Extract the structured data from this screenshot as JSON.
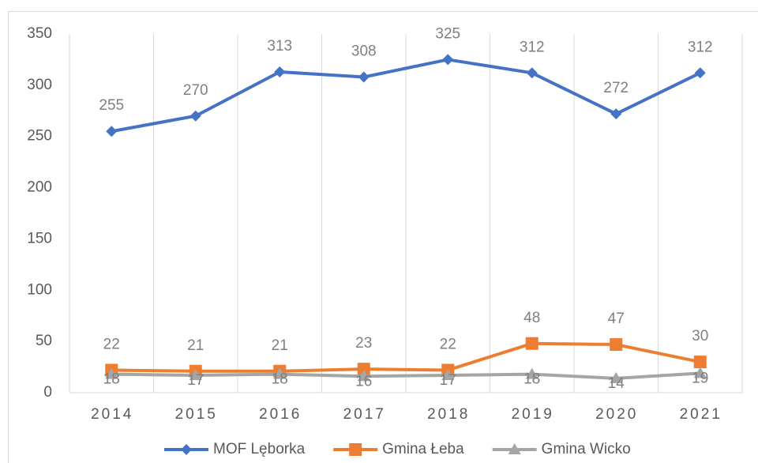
{
  "chart_data": {
    "type": "line",
    "categories": [
      "2014",
      "2015",
      "2016",
      "2017",
      "2018",
      "2019",
      "2020",
      "2021"
    ],
    "series": [
      {
        "name": "MOF Lęborka",
        "color": "#4472c4",
        "marker": "diamond",
        "label_position": "above",
        "values": [
          255,
          270,
          313,
          308,
          325,
          312,
          272,
          312
        ]
      },
      {
        "name": "Gmina Łeba",
        "color": "#ed7d31",
        "marker": "square",
        "label_position": "above",
        "values": [
          22,
          21,
          21,
          23,
          22,
          48,
          47,
          30
        ]
      },
      {
        "name": "Gmina Wicko",
        "color": "#a5a5a5",
        "marker": "triangle",
        "label_position": "below",
        "values": [
          18,
          17,
          18,
          16,
          17,
          18,
          14,
          19
        ]
      }
    ],
    "ylim": [
      0,
      350
    ],
    "yticks": [
      0,
      50,
      100,
      150,
      200,
      250,
      300,
      350
    ],
    "grid": "vertical",
    "legend": "bottom"
  }
}
